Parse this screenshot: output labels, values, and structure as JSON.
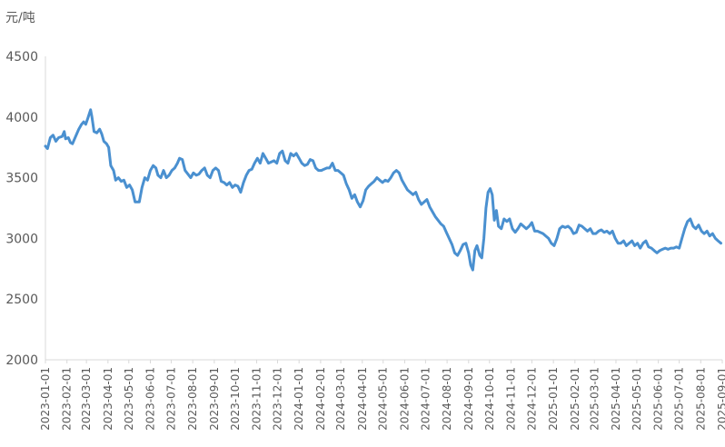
{
  "chart_data": {
    "type": "line",
    "unit_label": "元/吨",
    "ylim": [
      2000,
      4500
    ],
    "y_ticks": [
      2000,
      2500,
      3000,
      3500,
      4000,
      4500
    ],
    "x_ticks": [
      "2023-01-01",
      "2023-02-01",
      "2023-03-01",
      "2023-04-01",
      "2023-05-01",
      "2023-06-01",
      "2023-07-01",
      "2023-08-01",
      "2023-09-01",
      "2023-10-01",
      "2023-11-01",
      "2023-12-01",
      "2024-01-01",
      "2024-02-01",
      "2024-03-01",
      "2024-04-01",
      "2024-05-01",
      "2024-06-01",
      "2024-07-01",
      "2024-08-01",
      "2024-09-01",
      "2024-10-01",
      "2024-11-01",
      "2024-12-01",
      "2025-01-01",
      "2025-02-01",
      "2025-03-01",
      "2025-04-01",
      "2025-05-01",
      "2025-06-01",
      "2025-07-01",
      "2025-08-01",
      "2025-09-01"
    ],
    "grid": false,
    "legend": "none",
    "series": [
      {
        "color": "#4a90d0",
        "points": [
          [
            "2023-01-01",
            3760
          ],
          [
            "2023-01-04",
            3740
          ],
          [
            "2023-01-08",
            3830
          ],
          [
            "2023-01-12",
            3850
          ],
          [
            "2023-01-16",
            3800
          ],
          [
            "2023-01-20",
            3830
          ],
          [
            "2023-01-25",
            3840
          ],
          [
            "2023-01-28",
            3880
          ],
          [
            "2023-01-30",
            3820
          ],
          [
            "2023-02-03",
            3830
          ],
          [
            "2023-02-06",
            3790
          ],
          [
            "2023-02-09",
            3780
          ],
          [
            "2023-02-12",
            3820
          ],
          [
            "2023-02-15",
            3860
          ],
          [
            "2023-02-18",
            3900
          ],
          [
            "2023-02-22",
            3940
          ],
          [
            "2023-02-25",
            3960
          ],
          [
            "2023-02-28",
            3940
          ],
          [
            "2023-03-03",
            3990
          ],
          [
            "2023-03-07",
            4060
          ],
          [
            "2023-03-09",
            4000
          ],
          [
            "2023-03-12",
            3880
          ],
          [
            "2023-03-16",
            3870
          ],
          [
            "2023-03-20",
            3900
          ],
          [
            "2023-03-23",
            3860
          ],
          [
            "2023-03-26",
            3800
          ],
          [
            "2023-03-30",
            3780
          ],
          [
            "2023-04-02",
            3750
          ],
          [
            "2023-04-05",
            3600
          ],
          [
            "2023-04-09",
            3560
          ],
          [
            "2023-04-12",
            3480
          ],
          [
            "2023-04-16",
            3500
          ],
          [
            "2023-04-20",
            3470
          ],
          [
            "2023-04-24",
            3480
          ],
          [
            "2023-04-28",
            3420
          ],
          [
            "2023-05-02",
            3440
          ],
          [
            "2023-05-06",
            3400
          ],
          [
            "2023-05-10",
            3300
          ],
          [
            "2023-05-16",
            3300
          ],
          [
            "2023-05-20",
            3420
          ],
          [
            "2023-05-24",
            3500
          ],
          [
            "2023-05-28",
            3480
          ],
          [
            "2023-06-01",
            3560
          ],
          [
            "2023-06-05",
            3600
          ],
          [
            "2023-06-09",
            3580
          ],
          [
            "2023-06-12",
            3520
          ],
          [
            "2023-06-16",
            3500
          ],
          [
            "2023-06-20",
            3560
          ],
          [
            "2023-06-24",
            3500
          ],
          [
            "2023-06-28",
            3520
          ],
          [
            "2023-07-02",
            3560
          ],
          [
            "2023-07-06",
            3580
          ],
          [
            "2023-07-10",
            3620
          ],
          [
            "2023-07-13",
            3660
          ],
          [
            "2023-07-17",
            3650
          ],
          [
            "2023-07-21",
            3560
          ],
          [
            "2023-07-25",
            3530
          ],
          [
            "2023-07-29",
            3500
          ],
          [
            "2023-08-02",
            3540
          ],
          [
            "2023-08-06",
            3520
          ],
          [
            "2023-08-10",
            3530
          ],
          [
            "2023-08-14",
            3560
          ],
          [
            "2023-08-18",
            3580
          ],
          [
            "2023-08-22",
            3520
          ],
          [
            "2023-08-26",
            3500
          ],
          [
            "2023-08-30",
            3560
          ],
          [
            "2023-09-03",
            3580
          ],
          [
            "2023-09-07",
            3560
          ],
          [
            "2023-09-11",
            3470
          ],
          [
            "2023-09-15",
            3460
          ],
          [
            "2023-09-19",
            3440
          ],
          [
            "2023-09-23",
            3460
          ],
          [
            "2023-09-27",
            3420
          ],
          [
            "2023-10-01",
            3440
          ],
          [
            "2023-10-05",
            3430
          ],
          [
            "2023-10-09",
            3380
          ],
          [
            "2023-10-13",
            3460
          ],
          [
            "2023-10-17",
            3520
          ],
          [
            "2023-10-21",
            3560
          ],
          [
            "2023-10-25",
            3570
          ],
          [
            "2023-10-29",
            3620
          ],
          [
            "2023-11-02",
            3660
          ],
          [
            "2023-11-06",
            3620
          ],
          [
            "2023-11-10",
            3700
          ],
          [
            "2023-11-14",
            3660
          ],
          [
            "2023-11-18",
            3620
          ],
          [
            "2023-11-22",
            3630
          ],
          [
            "2023-11-26",
            3640
          ],
          [
            "2023-11-30",
            3620
          ],
          [
            "2023-12-04",
            3700
          ],
          [
            "2023-12-08",
            3720
          ],
          [
            "2023-12-12",
            3640
          ],
          [
            "2023-12-16",
            3620
          ],
          [
            "2023-12-20",
            3700
          ],
          [
            "2023-12-24",
            3680
          ],
          [
            "2023-12-28",
            3700
          ],
          [
            "2024-01-01",
            3660
          ],
          [
            "2024-01-05",
            3620
          ],
          [
            "2024-01-09",
            3600
          ],
          [
            "2024-01-13",
            3610
          ],
          [
            "2024-01-17",
            3650
          ],
          [
            "2024-01-21",
            3640
          ],
          [
            "2024-01-25",
            3580
          ],
          [
            "2024-01-29",
            3560
          ],
          [
            "2024-02-02",
            3560
          ],
          [
            "2024-02-06",
            3570
          ],
          [
            "2024-02-10",
            3580
          ],
          [
            "2024-02-14",
            3580
          ],
          [
            "2024-02-18",
            3620
          ],
          [
            "2024-02-22",
            3560
          ],
          [
            "2024-02-26",
            3560
          ],
          [
            "2024-03-01",
            3540
          ],
          [
            "2024-03-05",
            3520
          ],
          [
            "2024-03-09",
            3450
          ],
          [
            "2024-03-13",
            3400
          ],
          [
            "2024-03-17",
            3330
          ],
          [
            "2024-03-21",
            3360
          ],
          [
            "2024-03-25",
            3300
          ],
          [
            "2024-03-29",
            3260
          ],
          [
            "2024-04-02",
            3310
          ],
          [
            "2024-04-06",
            3400
          ],
          [
            "2024-04-10",
            3430
          ],
          [
            "2024-04-14",
            3450
          ],
          [
            "2024-04-18",
            3470
          ],
          [
            "2024-04-22",
            3500
          ],
          [
            "2024-04-26",
            3480
          ],
          [
            "2024-04-30",
            3460
          ],
          [
            "2024-05-04",
            3480
          ],
          [
            "2024-05-08",
            3470
          ],
          [
            "2024-05-12",
            3500
          ],
          [
            "2024-05-16",
            3540
          ],
          [
            "2024-05-20",
            3560
          ],
          [
            "2024-05-24",
            3540
          ],
          [
            "2024-05-28",
            3480
          ],
          [
            "2024-06-01",
            3440
          ],
          [
            "2024-06-05",
            3400
          ],
          [
            "2024-06-09",
            3380
          ],
          [
            "2024-06-13",
            3360
          ],
          [
            "2024-06-17",
            3380
          ],
          [
            "2024-06-21",
            3320
          ],
          [
            "2024-06-25",
            3280
          ],
          [
            "2024-06-29",
            3300
          ],
          [
            "2024-07-03",
            3320
          ],
          [
            "2024-07-07",
            3260
          ],
          [
            "2024-07-11",
            3220
          ],
          [
            "2024-07-15",
            3180
          ],
          [
            "2024-07-19",
            3150
          ],
          [
            "2024-07-23",
            3120
          ],
          [
            "2024-07-27",
            3100
          ],
          [
            "2024-07-31",
            3050
          ],
          [
            "2024-08-04",
            3000
          ],
          [
            "2024-08-08",
            2950
          ],
          [
            "2024-08-12",
            2880
          ],
          [
            "2024-08-16",
            2860
          ],
          [
            "2024-08-20",
            2900
          ],
          [
            "2024-08-24",
            2950
          ],
          [
            "2024-08-28",
            2960
          ],
          [
            "2024-09-01",
            2880
          ],
          [
            "2024-09-04",
            2780
          ],
          [
            "2024-09-07",
            2740
          ],
          [
            "2024-09-10",
            2900
          ],
          [
            "2024-09-13",
            2940
          ],
          [
            "2024-09-17",
            2860
          ],
          [
            "2024-09-20",
            2840
          ],
          [
            "2024-09-23",
            3000
          ],
          [
            "2024-09-26",
            3250
          ],
          [
            "2024-09-29",
            3380
          ],
          [
            "2024-10-02",
            3410
          ],
          [
            "2024-10-05",
            3360
          ],
          [
            "2024-10-08",
            3150
          ],
          [
            "2024-10-11",
            3230
          ],
          [
            "2024-10-14",
            3100
          ],
          [
            "2024-10-18",
            3080
          ],
          [
            "2024-10-22",
            3160
          ],
          [
            "2024-10-26",
            3140
          ],
          [
            "2024-10-30",
            3160
          ],
          [
            "2024-11-03",
            3080
          ],
          [
            "2024-11-07",
            3050
          ],
          [
            "2024-11-11",
            3080
          ],
          [
            "2024-11-15",
            3120
          ],
          [
            "2024-11-19",
            3100
          ],
          [
            "2024-11-23",
            3080
          ],
          [
            "2024-11-27",
            3100
          ],
          [
            "2024-12-01",
            3130
          ],
          [
            "2024-12-05",
            3060
          ],
          [
            "2024-12-09",
            3060
          ],
          [
            "2024-12-13",
            3050
          ],
          [
            "2024-12-17",
            3040
          ],
          [
            "2024-12-21",
            3020
          ],
          [
            "2024-12-25",
            3000
          ],
          [
            "2024-12-29",
            2960
          ],
          [
            "2025-01-02",
            2940
          ],
          [
            "2025-01-06",
            3000
          ],
          [
            "2025-01-10",
            3080
          ],
          [
            "2025-01-14",
            3100
          ],
          [
            "2025-01-18",
            3090
          ],
          [
            "2025-01-22",
            3100
          ],
          [
            "2025-01-26",
            3080
          ],
          [
            "2025-01-30",
            3040
          ],
          [
            "2025-02-03",
            3050
          ],
          [
            "2025-02-07",
            3110
          ],
          [
            "2025-02-11",
            3100
          ],
          [
            "2025-02-15",
            3080
          ],
          [
            "2025-02-19",
            3060
          ],
          [
            "2025-02-23",
            3080
          ],
          [
            "2025-02-27",
            3040
          ],
          [
            "2025-03-03",
            3040
          ],
          [
            "2025-03-07",
            3060
          ],
          [
            "2025-03-11",
            3070
          ],
          [
            "2025-03-15",
            3050
          ],
          [
            "2025-03-19",
            3060
          ],
          [
            "2025-03-23",
            3040
          ],
          [
            "2025-03-27",
            3060
          ],
          [
            "2025-03-31",
            3000
          ],
          [
            "2025-04-04",
            2960
          ],
          [
            "2025-04-08",
            2960
          ],
          [
            "2025-04-12",
            2980
          ],
          [
            "2025-04-16",
            2940
          ],
          [
            "2025-04-20",
            2960
          ],
          [
            "2025-04-24",
            2980
          ],
          [
            "2025-04-28",
            2940
          ],
          [
            "2025-05-02",
            2960
          ],
          [
            "2025-05-06",
            2920
          ],
          [
            "2025-05-10",
            2960
          ],
          [
            "2025-05-14",
            2980
          ],
          [
            "2025-05-18",
            2930
          ],
          [
            "2025-05-22",
            2920
          ],
          [
            "2025-05-26",
            2900
          ],
          [
            "2025-05-30",
            2880
          ],
          [
            "2025-06-03",
            2900
          ],
          [
            "2025-06-07",
            2910
          ],
          [
            "2025-06-11",
            2920
          ],
          [
            "2025-06-15",
            2910
          ],
          [
            "2025-06-19",
            2920
          ],
          [
            "2025-06-23",
            2920
          ],
          [
            "2025-06-27",
            2930
          ],
          [
            "2025-07-01",
            2920
          ],
          [
            "2025-07-05",
            3000
          ],
          [
            "2025-07-09",
            3080
          ],
          [
            "2025-07-13",
            3140
          ],
          [
            "2025-07-17",
            3160
          ],
          [
            "2025-07-21",
            3100
          ],
          [
            "2025-07-25",
            3080
          ],
          [
            "2025-07-29",
            3110
          ],
          [
            "2025-08-02",
            3060
          ],
          [
            "2025-08-06",
            3040
          ],
          [
            "2025-08-10",
            3060
          ],
          [
            "2025-08-14",
            3020
          ],
          [
            "2025-08-18",
            3040
          ],
          [
            "2025-08-22",
            3000
          ],
          [
            "2025-08-26",
            2980
          ],
          [
            "2025-08-30",
            2960
          ]
        ]
      }
    ]
  }
}
